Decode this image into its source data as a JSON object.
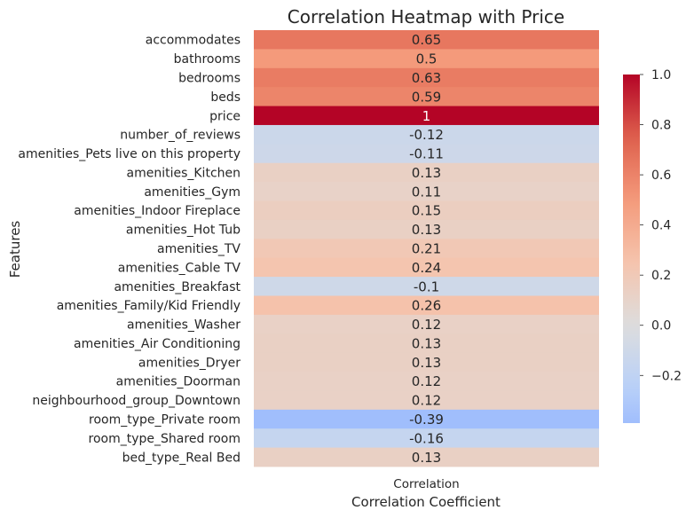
{
  "chart_data": {
    "type": "heatmap",
    "title": "Correlation Heatmap with Price",
    "xlabel": "Correlation Coefficient",
    "ylabel": "Features",
    "columns": [
      "Correlation"
    ],
    "rows": [
      {
        "feature": "accommodates",
        "value": 0.65,
        "label": "0.65"
      },
      {
        "feature": "bathrooms",
        "value": 0.5,
        "label": "0.5"
      },
      {
        "feature": "bedrooms",
        "value": 0.63,
        "label": "0.63"
      },
      {
        "feature": "beds",
        "value": 0.59,
        "label": "0.59"
      },
      {
        "feature": "price",
        "value": 1,
        "label": "1"
      },
      {
        "feature": "number_of_reviews",
        "value": -0.12,
        "label": "-0.12"
      },
      {
        "feature": "amenities_Pets live on this property",
        "value": -0.11,
        "label": "-0.11"
      },
      {
        "feature": "amenities_Kitchen",
        "value": 0.13,
        "label": "0.13"
      },
      {
        "feature": "amenities_Gym",
        "value": 0.11,
        "label": "0.11"
      },
      {
        "feature": "amenities_Indoor Fireplace",
        "value": 0.15,
        "label": "0.15"
      },
      {
        "feature": "amenities_Hot Tub",
        "value": 0.13,
        "label": "0.13"
      },
      {
        "feature": "amenities_TV",
        "value": 0.21,
        "label": "0.21"
      },
      {
        "feature": "amenities_Cable TV",
        "value": 0.24,
        "label": "0.24"
      },
      {
        "feature": "amenities_Breakfast",
        "value": -0.1,
        "label": "-0.1"
      },
      {
        "feature": "amenities_Family/Kid Friendly",
        "value": 0.26,
        "label": "0.26"
      },
      {
        "feature": "amenities_Washer",
        "value": 0.12,
        "label": "0.12"
      },
      {
        "feature": "amenities_Air Conditioning",
        "value": 0.13,
        "label": "0.13"
      },
      {
        "feature": "amenities_Dryer",
        "value": 0.13,
        "label": "0.13"
      },
      {
        "feature": "amenities_Doorman",
        "value": 0.12,
        "label": "0.12"
      },
      {
        "feature": "neighbourhood_group_Downtown",
        "value": 0.12,
        "label": "0.12"
      },
      {
        "feature": "room_type_Private room",
        "value": -0.39,
        "label": "-0.39"
      },
      {
        "feature": "room_type_Shared room",
        "value": -0.16,
        "label": "-0.16"
      },
      {
        "feature": "bed_type_Real Bed",
        "value": 0.13,
        "label": "0.13"
      }
    ],
    "colormap": "coolwarm",
    "center": 0,
    "vmin": -0.39,
    "vmax": 1,
    "colorbar_ticks": [
      1.0,
      0.8,
      0.6,
      0.4,
      0.2,
      0.0,
      -0.2
    ],
    "colorbar_tick_labels": [
      "1.0",
      "0.8",
      "0.6",
      "0.4",
      "0.2",
      "0.0",
      "−0.2"
    ],
    "grid": false,
    "legend": "colorbar-right"
  }
}
